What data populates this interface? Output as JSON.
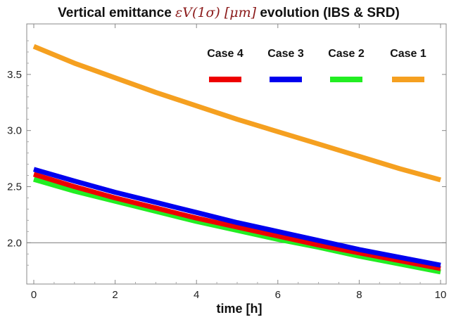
{
  "chart_data": {
    "type": "line",
    "title": {
      "before": "Vertical emittance ",
      "math": "εV(1σ) [μm]",
      "after": " evolution (IBS & SRD)"
    },
    "xlabel": "time [h]",
    "ylabel": "",
    "xlim": [
      0,
      10
    ],
    "ylim": [
      1.72,
      3.85
    ],
    "xticks": [
      "0",
      "2",
      "4",
      "6",
      "8",
      "10"
    ],
    "yticks": [
      "2.0",
      "2.5",
      "3.0",
      "3.5"
    ],
    "reference_line": {
      "y": 2.0,
      "color": "#888888"
    },
    "grid": false,
    "legend_position": "top-right",
    "x": [
      0,
      1,
      2,
      3,
      4,
      5,
      6,
      7,
      8,
      9,
      10
    ],
    "series": [
      {
        "name": "Case 4",
        "color": "#ee0000",
        "values": [
          2.61,
          2.5,
          2.4,
          2.31,
          2.22,
          2.14,
          2.06,
          1.98,
          1.91,
          1.84,
          1.77
        ]
      },
      {
        "name": "Case 3",
        "color": "#0000ee",
        "values": [
          2.655,
          2.55,
          2.45,
          2.36,
          2.27,
          2.18,
          2.1,
          2.02,
          1.94,
          1.87,
          1.8
        ]
      },
      {
        "name": "Case 2",
        "color": "#22ee22",
        "values": [
          2.565,
          2.46,
          2.37,
          2.28,
          2.19,
          2.11,
          2.03,
          1.96,
          1.88,
          1.81,
          1.74
        ]
      },
      {
        "name": "Case 1",
        "color": "#f5a020",
        "values": [
          3.75,
          3.6,
          3.47,
          3.34,
          3.22,
          3.1,
          2.99,
          2.88,
          2.77,
          2.66,
          2.56
        ]
      }
    ]
  }
}
